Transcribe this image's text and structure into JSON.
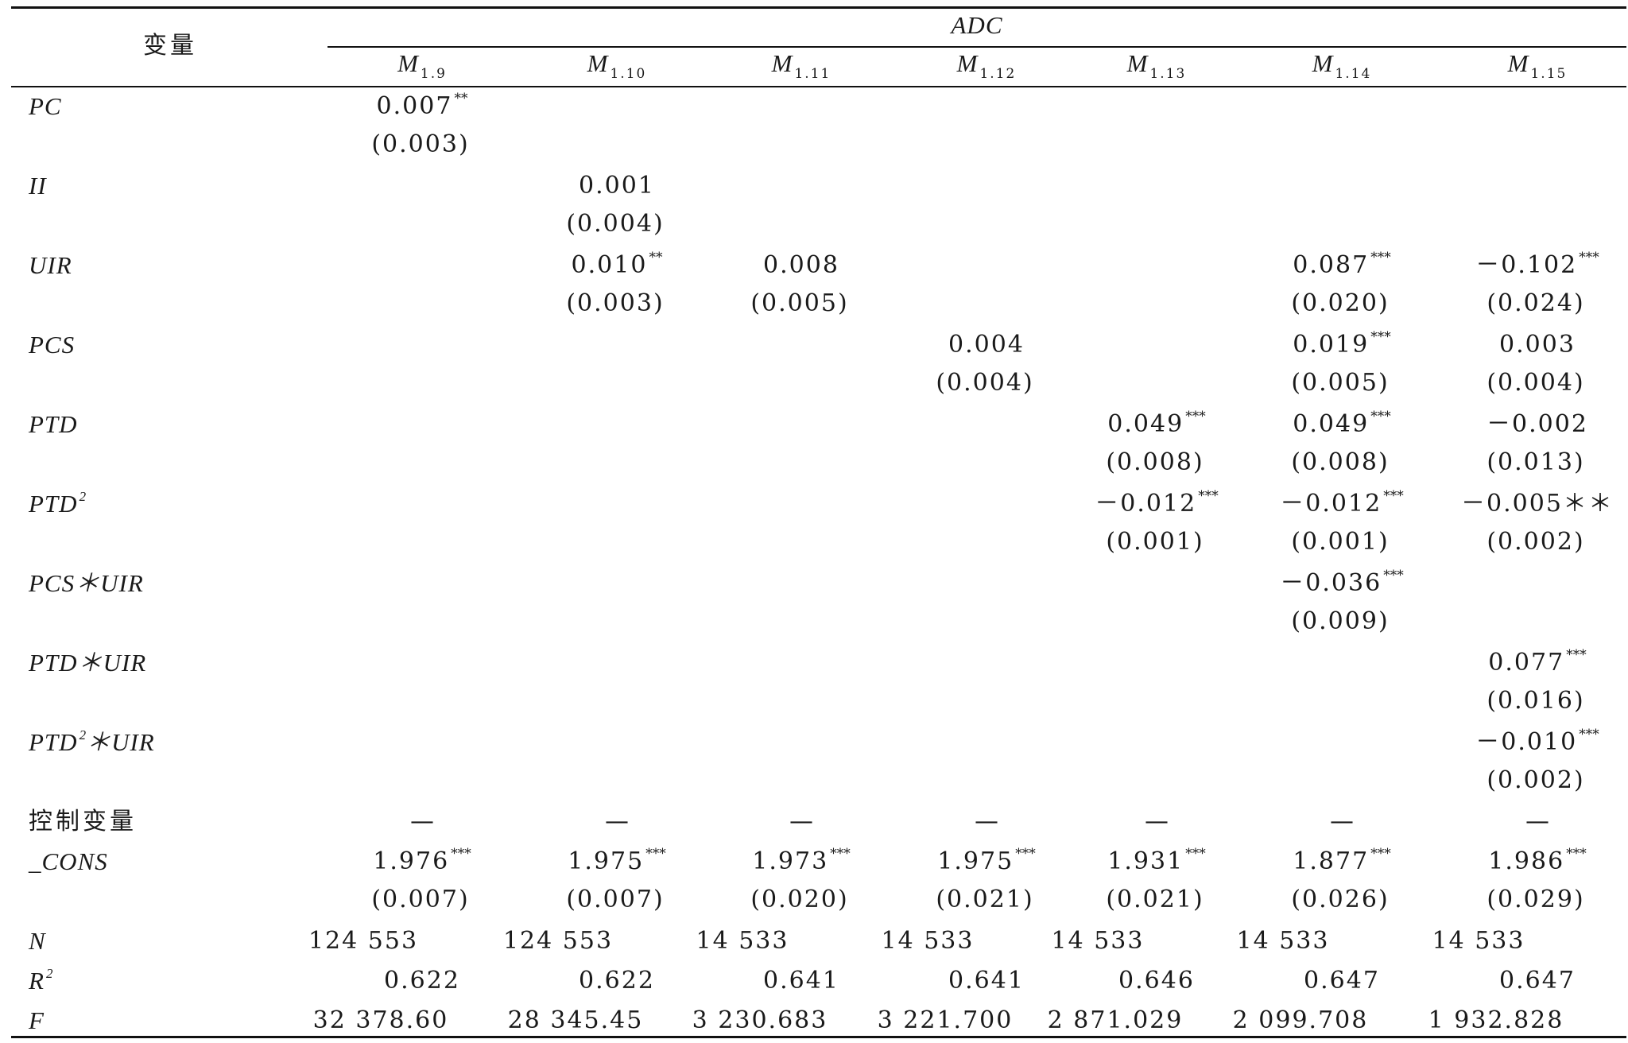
{
  "table": {
    "header": {
      "variable_col": "变量",
      "group": "ADC",
      "model_prefix": "M",
      "model_subscripts": [
        "1.9",
        "1.10",
        "1.11",
        "1.12",
        "1.13",
        "1.14",
        "1.15"
      ]
    },
    "rows": [
      {
        "label": "PC",
        "label_sup": "",
        "label_suffix": "",
        "cells": [
          {
            "v": "0.007",
            "s": "**",
            "se": "(0.003)"
          },
          null,
          null,
          null,
          null,
          null,
          null
        ]
      },
      {
        "label": "II",
        "label_sup": "",
        "label_suffix": "",
        "cells": [
          null,
          {
            "v": "0.001",
            "s": "",
            "se": "(0.004)"
          },
          null,
          null,
          null,
          null,
          null
        ]
      },
      {
        "label": "UIR",
        "label_sup": "",
        "label_suffix": "",
        "cells": [
          null,
          {
            "v": "0.010",
            "s": "**",
            "se": "(0.003)"
          },
          {
            "v": "0.008",
            "s": "",
            "se": "(0.005)"
          },
          null,
          null,
          {
            "v": "0.087",
            "s": "***",
            "se": "(0.020)"
          },
          {
            "v": "－0.102",
            "s": "***",
            "se": "(0.024)"
          }
        ]
      },
      {
        "label": "PCS",
        "label_sup": "",
        "label_suffix": "",
        "cells": [
          null,
          null,
          null,
          {
            "v": "0.004",
            "s": "",
            "se": "(0.004)"
          },
          null,
          {
            "v": "0.019",
            "s": "***",
            "se": "(0.005)"
          },
          {
            "v": "0.003",
            "s": "",
            "se": "(0.004)"
          }
        ]
      },
      {
        "label": "PTD",
        "label_sup": "",
        "label_suffix": "",
        "cells": [
          null,
          null,
          null,
          null,
          {
            "v": "0.049",
            "s": "***",
            "se": "(0.008)"
          },
          {
            "v": "0.049",
            "s": "***",
            "se": "(0.008)"
          },
          {
            "v": "－0.002",
            "s": "",
            "se": "(0.013)"
          }
        ]
      },
      {
        "label": "PTD",
        "label_sup": "2",
        "label_suffix": "",
        "cells": [
          null,
          null,
          null,
          null,
          {
            "v": "－0.012",
            "s": "***",
            "se": "(0.001)"
          },
          {
            "v": "－0.012",
            "s": "***",
            "se": "(0.001)"
          },
          {
            "v": "－0.005＊＊",
            "s": "",
            "se": "(0.002)"
          }
        ]
      },
      {
        "label": "PCS＊UIR",
        "label_sup": "",
        "label_suffix": "",
        "cells": [
          null,
          null,
          null,
          null,
          null,
          {
            "v": "－0.036",
            "s": "***",
            "se": "(0.009)"
          },
          null
        ]
      },
      {
        "label": "PTD＊UIR",
        "label_sup": "",
        "label_suffix": "",
        "cells": [
          null,
          null,
          null,
          null,
          null,
          null,
          {
            "v": "0.077",
            "s": "***",
            "se": "(0.016)"
          }
        ]
      },
      {
        "label": "PTD",
        "label_sup": "2",
        "label_suffix": "＊UIR",
        "cells": [
          null,
          null,
          null,
          null,
          null,
          null,
          {
            "v": "－0.010",
            "s": "***",
            "se": "(0.002)"
          }
        ]
      }
    ],
    "controls": {
      "label": "控制变量",
      "values": [
        "—",
        "—",
        "—",
        "—",
        "—",
        "—",
        "—"
      ]
    },
    "cons": {
      "label": "_CONS",
      "cells": [
        {
          "v": "1.976",
          "s": "***",
          "se": "(0.007)"
        },
        {
          "v": "1.975",
          "s": "***",
          "se": "(0.007)"
        },
        {
          "v": "1.973",
          "s": "***",
          "se": "(0.020)"
        },
        {
          "v": "1.975",
          "s": "***",
          "se": "(0.021)"
        },
        {
          "v": "1.931",
          "s": "***",
          "se": "(0.021)"
        },
        {
          "v": "1.877",
          "s": "***",
          "se": "(0.026)"
        },
        {
          "v": "1.986",
          "s": "***",
          "se": "(0.029)"
        }
      ]
    },
    "n": {
      "label": "N",
      "values": [
        "124 553",
        "124 553",
        "14 533",
        "14 533",
        "14 533",
        "14 533",
        "14 533"
      ]
    },
    "r2": {
      "label": "R",
      "label_sup": "2",
      "values": [
        "0.622",
        "0.622",
        "0.641",
        "0.641",
        "0.646",
        "0.647",
        "0.647"
      ]
    },
    "f": {
      "label": "F",
      "values": [
        "32 378.60",
        "28 345.45",
        "3 230.683",
        "3 221.700",
        "2 871.029",
        "2 099.708",
        "1 932.828"
      ]
    }
  }
}
